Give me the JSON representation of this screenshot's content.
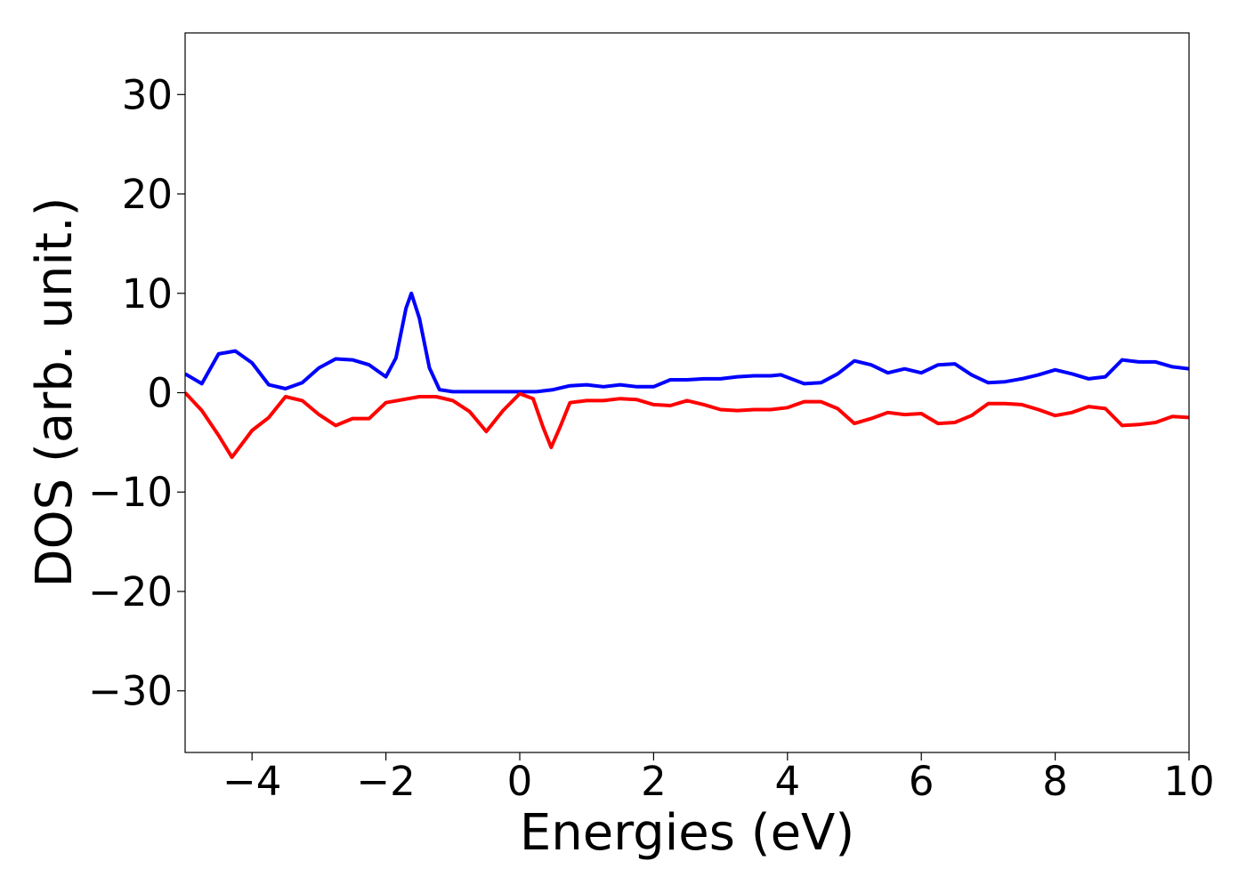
{
  "chart_data": {
    "type": "line",
    "xlabel": "Energies (eV)",
    "ylabel": "DOS (arb. unit.)",
    "xlim": [
      -5,
      10
    ],
    "ylim": [
      -36.2,
      36.2
    ],
    "xticks": [
      {
        "value": -4,
        "label": "−4"
      },
      {
        "value": -2,
        "label": "−2"
      },
      0,
      2,
      4,
      6,
      8,
      10
    ],
    "yticks": [
      {
        "value": -30,
        "label": "−30"
      },
      {
        "value": -20,
        "label": "−20"
      },
      {
        "value": -10,
        "label": "−10"
      },
      0,
      10,
      20,
      30
    ],
    "series": [
      {
        "color": "#0000ff",
        "x": [
          -5,
          -4.75,
          -4.5,
          -4.25,
          -4.0,
          -3.75,
          -3.5,
          -3.25,
          -3.0,
          -2.75,
          -2.5,
          -2.25,
          -2.0,
          -1.85,
          -1.7,
          -1.62,
          -1.5,
          -1.35,
          -1.2,
          -1.0,
          -0.5,
          0,
          0.25,
          0.5,
          0.75,
          1.0,
          1.25,
          1.5,
          1.75,
          2.0,
          2.25,
          2.5,
          2.75,
          3.0,
          3.25,
          3.5,
          3.75,
          3.9,
          4.25,
          4.5,
          4.75,
          5.0,
          5.25,
          5.5,
          5.75,
          6.0,
          6.25,
          6.5,
          6.75,
          7.0,
          7.25,
          7.5,
          7.75,
          8.0,
          8.25,
          8.5,
          8.75,
          9.0,
          9.25,
          9.5,
          9.75,
          10.0
        ],
        "values": [
          1.9,
          0.9,
          3.9,
          4.2,
          3.0,
          0.8,
          0.4,
          1.0,
          2.5,
          3.4,
          3.3,
          2.8,
          1.6,
          3.5,
          8.5,
          10.0,
          7.5,
          2.5,
          0.3,
          0.1,
          0.1,
          0.1,
          0.1,
          0.3,
          0.7,
          0.8,
          0.6,
          0.8,
          0.6,
          0.6,
          1.3,
          1.3,
          1.4,
          1.4,
          1.6,
          1.7,
          1.7,
          1.8,
          0.9,
          1.0,
          1.9,
          3.2,
          2.8,
          2.0,
          2.4,
          2.0,
          2.8,
          2.9,
          1.8,
          1.0,
          1.1,
          1.4,
          1.8,
          2.3,
          1.9,
          1.4,
          1.6,
          3.3,
          3.1,
          3.1,
          2.6,
          2.4
        ]
      },
      {
        "color": "#ff0000",
        "x": [
          -5,
          -4.75,
          -4.5,
          -4.3,
          -4.0,
          -3.75,
          -3.5,
          -3.25,
          -3.0,
          -2.75,
          -2.5,
          -2.25,
          -2.0,
          -1.75,
          -1.5,
          -1.25,
          -1.0,
          -0.75,
          -0.5,
          -0.25,
          0,
          0.2,
          0.35,
          0.47,
          0.6,
          0.75,
          1.0,
          1.25,
          1.5,
          1.75,
          2.0,
          2.25,
          2.5,
          2.75,
          3.0,
          3.25,
          3.5,
          3.75,
          4.0,
          4.25,
          4.5,
          4.75,
          5.0,
          5.25,
          5.5,
          5.75,
          6.0,
          6.25,
          6.5,
          6.75,
          7.0,
          7.25,
          7.5,
          7.75,
          8.0,
          8.25,
          8.5,
          8.75,
          9.0,
          9.25,
          9.5,
          9.75,
          10.0
        ],
        "values": [
          0,
          -1.8,
          -4.3,
          -6.5,
          -3.8,
          -2.5,
          -0.4,
          -0.8,
          -2.2,
          -3.3,
          -2.6,
          -2.6,
          -1.0,
          -0.7,
          -0.4,
          -0.4,
          -0.8,
          -1.9,
          -3.9,
          -1.8,
          -0.1,
          -0.6,
          -3.5,
          -5.5,
          -3.5,
          -1.0,
          -0.8,
          -0.8,
          -0.6,
          -0.7,
          -1.2,
          -1.3,
          -0.8,
          -1.2,
          -1.7,
          -1.8,
          -1.7,
          -1.7,
          -1.5,
          -0.9,
          -0.9,
          -1.6,
          -3.1,
          -2.6,
          -2.0,
          -2.2,
          -2.1,
          -3.1,
          -3.0,
          -2.3,
          -1.1,
          -1.1,
          -1.2,
          -1.7,
          -2.3,
          -2.0,
          -1.4,
          -1.6,
          -3.3,
          -3.2,
          -3.0,
          -2.4,
          -2.5
        ]
      }
    ]
  }
}
